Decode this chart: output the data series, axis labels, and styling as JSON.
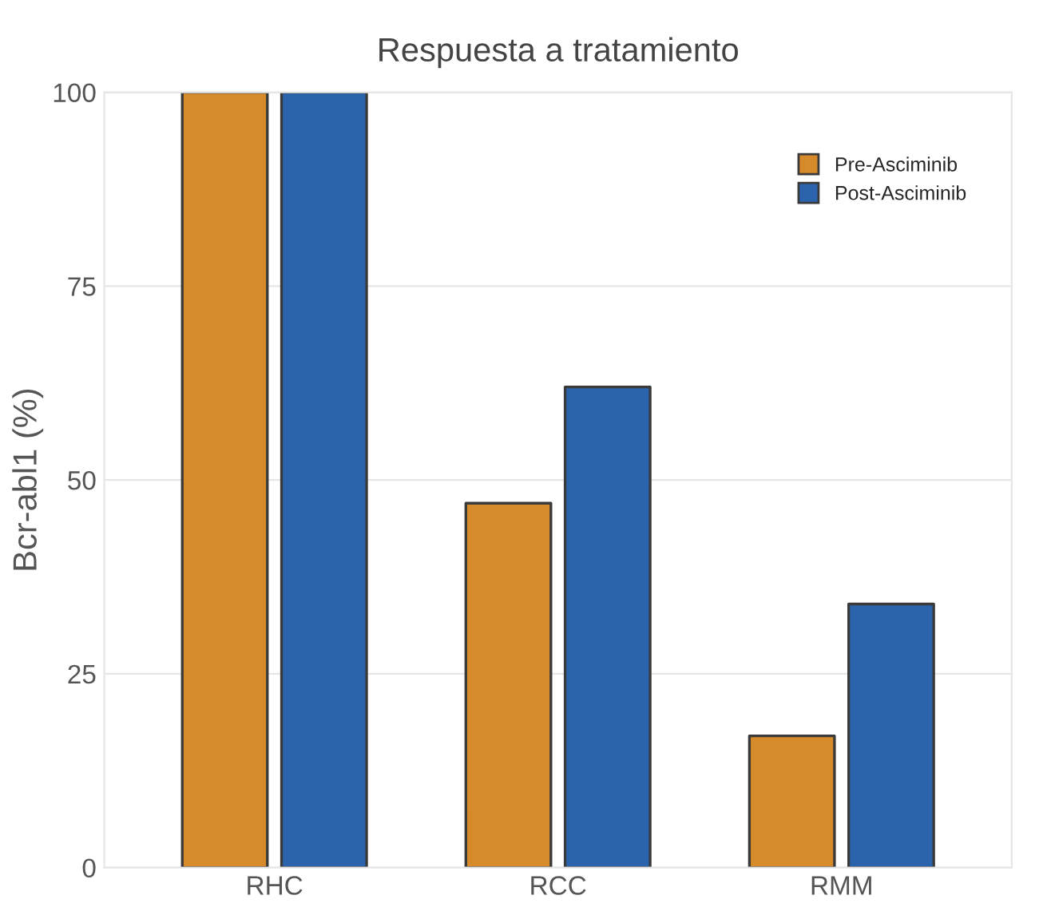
{
  "chart_data": {
    "type": "bar",
    "title": "Respuesta a tratamiento",
    "ylabel": "Bcr-abl1 (%)",
    "categories": [
      "RHC",
      "RCC",
      "RMM"
    ],
    "series": [
      {
        "name": "Pre-Asciminib",
        "color": "#d68a2a",
        "values": [
          100,
          47,
          17
        ]
      },
      {
        "name": "Post-Asciminib",
        "color": "#2b64ad",
        "values": [
          100,
          62,
          34
        ]
      }
    ],
    "ylim": [
      0,
      100
    ],
    "yticks": [
      0,
      25,
      50,
      75,
      100
    ],
    "grid": "y",
    "legend": "top right"
  }
}
